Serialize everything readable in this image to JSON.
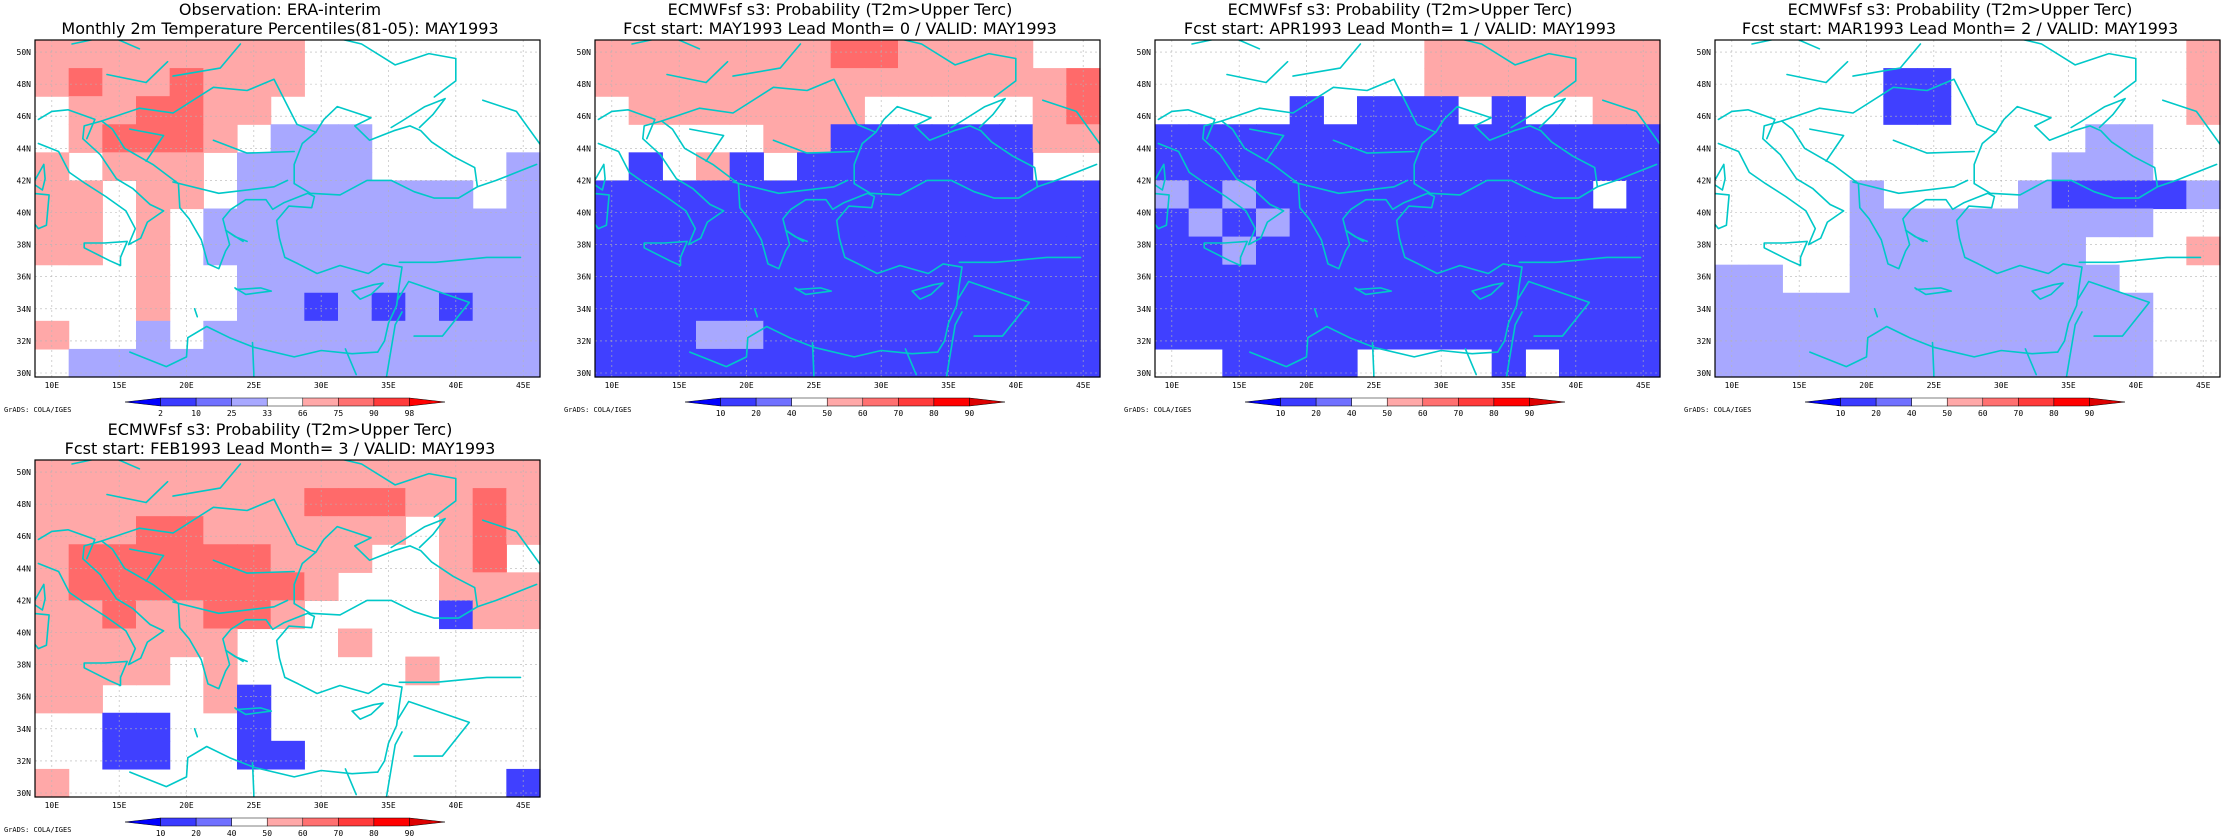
{
  "panels": [
    {
      "title1": "Observation: ERA-interim",
      "title2": "Monthly 2m Temperature Percentiles(81-05): MAY1993",
      "credit": "GrADS: COLA/IGES",
      "colorbar": {
        "labels": [
          "2",
          "10",
          "25",
          "33",
          "66",
          "75",
          "90",
          "98"
        ],
        "colors": [
          "#0000ff",
          "#3a3aff",
          "#7070ff",
          "#a8a8ff",
          "#ffffff",
          "#ffa8a8",
          "#ff7070",
          "#ff3a3a",
          "#ff0000"
        ]
      },
      "grid_cells": [
        [
          1,
          1,
          1,
          1,
          1,
          1,
          1,
          1,
          0,
          0,
          0,
          0,
          0,
          0,
          0
        ],
        [
          1,
          2,
          1,
          1,
          2,
          1,
          1,
          1,
          0,
          0,
          0,
          0,
          0,
          0,
          0
        ],
        [
          0,
          1,
          1,
          2,
          2,
          1,
          1,
          0,
          0,
          0,
          0,
          0,
          0,
          0,
          0
        ],
        [
          0,
          1,
          2,
          2,
          2,
          1,
          0,
          -1,
          -1,
          -1,
          0,
          0,
          0,
          0,
          0
        ],
        [
          1,
          0,
          1,
          1,
          1,
          0,
          -1,
          -1,
          -1,
          -1,
          0,
          0,
          0,
          0,
          -1
        ],
        [
          1,
          1,
          0,
          1,
          1,
          0,
          -1,
          -1,
          -1,
          -1,
          -1,
          -1,
          -1,
          0,
          -1
        ],
        [
          1,
          1,
          0,
          1,
          0,
          -1,
          -1,
          -1,
          -1,
          -1,
          -1,
          -1,
          -1,
          -1,
          -1
        ],
        [
          1,
          1,
          0,
          1,
          0,
          -1,
          -1,
          -1,
          -1,
          -1,
          -1,
          -1,
          -1,
          -1,
          -1
        ],
        [
          0,
          0,
          0,
          1,
          0,
          0,
          -1,
          -1,
          -1,
          -1,
          -1,
          -1,
          -1,
          -1,
          -1
        ],
        [
          0,
          0,
          0,
          1,
          0,
          0,
          -1,
          -1,
          -2,
          -1,
          -2,
          -1,
          -2,
          -1,
          -1
        ],
        [
          1,
          0,
          0,
          -1,
          0,
          -1,
          -1,
          -1,
          -1,
          -1,
          -1,
          -1,
          -1,
          -1,
          -1
        ],
        [
          0,
          -1,
          -1,
          -1,
          -1,
          -1,
          -1,
          -1,
          -1,
          -1,
          -1,
          -1,
          -1,
          -1,
          -1
        ]
      ]
    },
    {
      "title1": "ECMWFsf s3: Probability (T2m>Upper Terc)",
      "title2": "Fcst start: MAY1993   Lead Month= 0 / VALID: MAY1993",
      "credit": "GrADS: COLA/IGES",
      "colorbar": {
        "labels": [
          "10",
          "20",
          "40",
          "50",
          "60",
          "70",
          "80",
          "90"
        ],
        "colors": [
          "#0000ff",
          "#3a3aff",
          "#7070ff",
          "#ffffff",
          "#ffa8a8",
          "#ff7070",
          "#ff3a3a",
          "#ff0000",
          "#dd0000"
        ]
      },
      "grid_cells": [
        [
          1,
          1,
          1,
          1,
          1,
          1,
          1,
          2,
          2,
          1,
          1,
          1,
          1,
          0,
          0
        ],
        [
          1,
          1,
          1,
          1,
          1,
          1,
          1,
          1,
          1,
          1,
          1,
          1,
          1,
          1,
          2
        ],
        [
          0,
          1,
          1,
          1,
          1,
          1,
          1,
          1,
          0,
          0,
          0,
          0,
          0,
          1,
          2
        ],
        [
          0,
          0,
          0,
          0,
          0,
          1,
          1,
          -2,
          -2,
          -2,
          -2,
          -2,
          -2,
          1,
          1
        ],
        [
          0,
          -2,
          0,
          1,
          -2,
          0,
          -2,
          -2,
          -2,
          -2,
          -2,
          -2,
          -2,
          0,
          0
        ],
        [
          -2,
          -2,
          -2,
          -2,
          -2,
          -2,
          -2,
          -2,
          -2,
          -2,
          -2,
          -2,
          -2,
          -2,
          -2
        ],
        [
          -2,
          -2,
          -2,
          -2,
          -2,
          -2,
          -2,
          -2,
          -2,
          -2,
          -2,
          -2,
          -2,
          -2,
          -2
        ],
        [
          -2,
          -2,
          -2,
          -2,
          -2,
          -2,
          -2,
          -2,
          -2,
          -2,
          -2,
          -2,
          -2,
          -2,
          -2
        ],
        [
          -2,
          -2,
          -2,
          -2,
          -2,
          -2,
          -2,
          -2,
          -2,
          -2,
          -2,
          -2,
          -2,
          -2,
          -2
        ],
        [
          -2,
          -2,
          -2,
          -2,
          -2,
          -2,
          -2,
          -2,
          -2,
          -2,
          -2,
          -2,
          -2,
          -2,
          -2
        ],
        [
          -2,
          -2,
          -2,
          -1,
          -1,
          -2,
          -2,
          -2,
          -2,
          -2,
          -2,
          -2,
          -2,
          -2,
          -2
        ],
        [
          -2,
          -2,
          -2,
          -2,
          -2,
          -2,
          -2,
          -2,
          -2,
          -2,
          -2,
          -2,
          -2,
          -2,
          -2
        ]
      ]
    },
    {
      "title1": "ECMWFsf s3: Probability (T2m>Upper Terc)",
      "title2": "Fcst start: APR1993   Lead Month= 1 / VALID: MAY1993",
      "credit": "GrADS: COLA/IGES",
      "colorbar": {
        "labels": [
          "10",
          "20",
          "40",
          "50",
          "60",
          "70",
          "80",
          "90"
        ],
        "colors": [
          "#0000ff",
          "#3a3aff",
          "#7070ff",
          "#ffffff",
          "#ffa8a8",
          "#ff7070",
          "#ff3a3a",
          "#ff0000",
          "#dd0000"
        ]
      },
      "grid_cells": [
        [
          0,
          0,
          0,
          0,
          0,
          0,
          0,
          0,
          1,
          1,
          1,
          1,
          1,
          1,
          1
        ],
        [
          0,
          0,
          0,
          0,
          0,
          0,
          0,
          0,
          1,
          1,
          1,
          1,
          1,
          1,
          1
        ],
        [
          0,
          0,
          0,
          0,
          -2,
          0,
          -2,
          -2,
          -2,
          0,
          -2,
          0,
          0,
          1,
          1
        ],
        [
          -2,
          -2,
          -2,
          -2,
          -2,
          -2,
          -2,
          -2,
          -2,
          -2,
          -2,
          -2,
          -2,
          -2,
          -2
        ],
        [
          -2,
          -2,
          -2,
          -2,
          -2,
          -2,
          -2,
          -2,
          -2,
          -2,
          -2,
          -2,
          -2,
          -2,
          -2
        ],
        [
          -1,
          -2,
          -1,
          -2,
          -2,
          -2,
          -2,
          -2,
          -2,
          -2,
          -2,
          -2,
          -2,
          0,
          -2
        ],
        [
          -2,
          -1,
          -2,
          -1,
          -2,
          -2,
          -2,
          -2,
          -2,
          -2,
          -2,
          -2,
          -2,
          -2,
          -2
        ],
        [
          -2,
          -2,
          -1,
          -2,
          -2,
          -2,
          -2,
          -2,
          -2,
          -2,
          -2,
          -2,
          -2,
          -2,
          -2
        ],
        [
          -2,
          -2,
          -2,
          -2,
          -2,
          -2,
          -2,
          -2,
          -2,
          -2,
          -2,
          -2,
          -2,
          -2,
          -2
        ],
        [
          -2,
          -2,
          -2,
          -2,
          -2,
          -2,
          -2,
          -2,
          -2,
          -2,
          -2,
          -2,
          -2,
          -2,
          -2
        ],
        [
          -2,
          -2,
          -2,
          -2,
          -2,
          -2,
          -2,
          -2,
          -2,
          -2,
          -2,
          -2,
          -2,
          -2,
          -2
        ],
        [
          0,
          0,
          -2,
          -2,
          -2,
          -2,
          0,
          0,
          0,
          0,
          -2,
          0,
          -2,
          -2,
          -2
        ]
      ]
    },
    {
      "title1": "ECMWFsf s3: Probability (T2m>Upper Terc)",
      "title2": "Fcst start: MAR1993   Lead Month= 2 / VALID: MAY1993",
      "credit": "GrADS: COLA/IGES",
      "colorbar": {
        "labels": [
          "10",
          "20",
          "40",
          "50",
          "60",
          "70",
          "80",
          "90"
        ],
        "colors": [
          "#0000ff",
          "#3a3aff",
          "#7070ff",
          "#ffffff",
          "#ffa8a8",
          "#ff7070",
          "#ff3a3a",
          "#ff0000",
          "#dd0000"
        ]
      },
      "grid_cells": [
        [
          0,
          0,
          0,
          0,
          0,
          0,
          0,
          0,
          0,
          0,
          0,
          0,
          0,
          0,
          1
        ],
        [
          0,
          0,
          0,
          0,
          0,
          -2,
          -2,
          0,
          0,
          0,
          0,
          0,
          0,
          0,
          1
        ],
        [
          0,
          0,
          0,
          0,
          0,
          -2,
          -2,
          0,
          0,
          0,
          0,
          0,
          0,
          0,
          1
        ],
        [
          0,
          0,
          0,
          0,
          0,
          0,
          0,
          0,
          0,
          0,
          0,
          -1,
          -1,
          0,
          0
        ],
        [
          0,
          0,
          0,
          0,
          0,
          0,
          0,
          0,
          0,
          0,
          -1,
          -1,
          -1,
          0,
          0
        ],
        [
          0,
          0,
          0,
          0,
          -1,
          0,
          0,
          0,
          0,
          -1,
          -2,
          -2,
          -2,
          -2,
          -1
        ],
        [
          0,
          0,
          0,
          0,
          -1,
          -1,
          -1,
          -1,
          -1,
          -1,
          -1,
          -1,
          -1,
          0,
          0
        ],
        [
          0,
          0,
          0,
          0,
          -1,
          -1,
          -1,
          -1,
          -1,
          -1,
          -1,
          0,
          0,
          0,
          1
        ],
        [
          -1,
          -1,
          0,
          0,
          -1,
          -1,
          -1,
          -1,
          -1,
          -1,
          -1,
          -1,
          0,
          0,
          0
        ],
        [
          -1,
          -1,
          -1,
          -1,
          -1,
          -1,
          -1,
          -1,
          -1,
          -1,
          -1,
          -1,
          -1,
          0,
          0
        ],
        [
          -1,
          -1,
          -1,
          -1,
          -1,
          -1,
          -1,
          -1,
          -1,
          -1,
          -1,
          -1,
          -1,
          0,
          0
        ],
        [
          -1,
          -1,
          -1,
          -1,
          -1,
          -1,
          -1,
          -1,
          -1,
          -1,
          -1,
          -1,
          -1,
          0,
          0
        ]
      ]
    },
    {
      "title1": "ECMWFsf s3: Probability (T2m>Upper Terc)",
      "title2": "Fcst start: FEB1993   Lead Month= 3 / VALID: MAY1993",
      "credit": "GrADS: COLA/IGES",
      "colorbar": {
        "labels": [
          "10",
          "20",
          "40",
          "50",
          "60",
          "70",
          "80",
          "90"
        ],
        "colors": [
          "#0000ff",
          "#3a3aff",
          "#7070ff",
          "#ffffff",
          "#ffa8a8",
          "#ff7070",
          "#ff3a3a",
          "#ff0000",
          "#dd0000"
        ]
      },
      "grid_cells": [
        [
          1,
          1,
          1,
          1,
          1,
          1,
          1,
          1,
          1,
          1,
          1,
          1,
          1,
          1,
          1
        ],
        [
          1,
          1,
          1,
          1,
          1,
          1,
          1,
          1,
          2,
          2,
          2,
          1,
          1,
          2,
          1
        ],
        [
          1,
          1,
          1,
          2,
          2,
          1,
          1,
          1,
          1,
          1,
          1,
          0,
          1,
          2,
          1
        ],
        [
          1,
          2,
          2,
          2,
          2,
          2,
          2,
          1,
          1,
          1,
          0,
          0,
          1,
          2,
          0
        ],
        [
          1,
          2,
          2,
          2,
          2,
          2,
          2,
          2,
          1,
          0,
          0,
          0,
          1,
          1,
          1
        ],
        [
          1,
          1,
          2,
          1,
          1,
          2,
          2,
          1,
          0,
          0,
          0,
          0,
          -2,
          1,
          1
        ],
        [
          1,
          1,
          1,
          1,
          1,
          1,
          0,
          0,
          0,
          1,
          0,
          0,
          0,
          0,
          0
        ],
        [
          1,
          1,
          1,
          1,
          0,
          1,
          0,
          0,
          0,
          0,
          0,
          1,
          0,
          0,
          0
        ],
        [
          1,
          1,
          0,
          0,
          0,
          1,
          -2,
          0,
          0,
          0,
          0,
          0,
          0,
          0,
          0
        ],
        [
          0,
          0,
          -2,
          -2,
          0,
          0,
          -2,
          0,
          0,
          0,
          0,
          0,
          0,
          0,
          0
        ],
        [
          0,
          0,
          -2,
          -2,
          0,
          0,
          -2,
          -2,
          0,
          0,
          0,
          0,
          0,
          0,
          0
        ],
        [
          1,
          0,
          0,
          0,
          0,
          0,
          0,
          0,
          0,
          0,
          0,
          0,
          0,
          0,
          -2
        ]
      ]
    }
  ],
  "axis": {
    "x_labels": [
      "10E",
      "15E",
      "20E",
      "25E",
      "30E",
      "35E",
      "40E",
      "45E"
    ],
    "y_labels": [
      "30N",
      "32N",
      "34N",
      "36N",
      "38N",
      "40N",
      "42N",
      "44N",
      "46N",
      "48N",
      "50N"
    ]
  },
  "palette": {
    "coast": "#00c8c8",
    "warm_1": "#ffa8a8",
    "warm_2": "#ff6a6a",
    "warm_3": "#ff2e2e",
    "cool_1": "#a8a8ff",
    "cool_2": "#4040ff",
    "cool_3": "#0000ff"
  }
}
